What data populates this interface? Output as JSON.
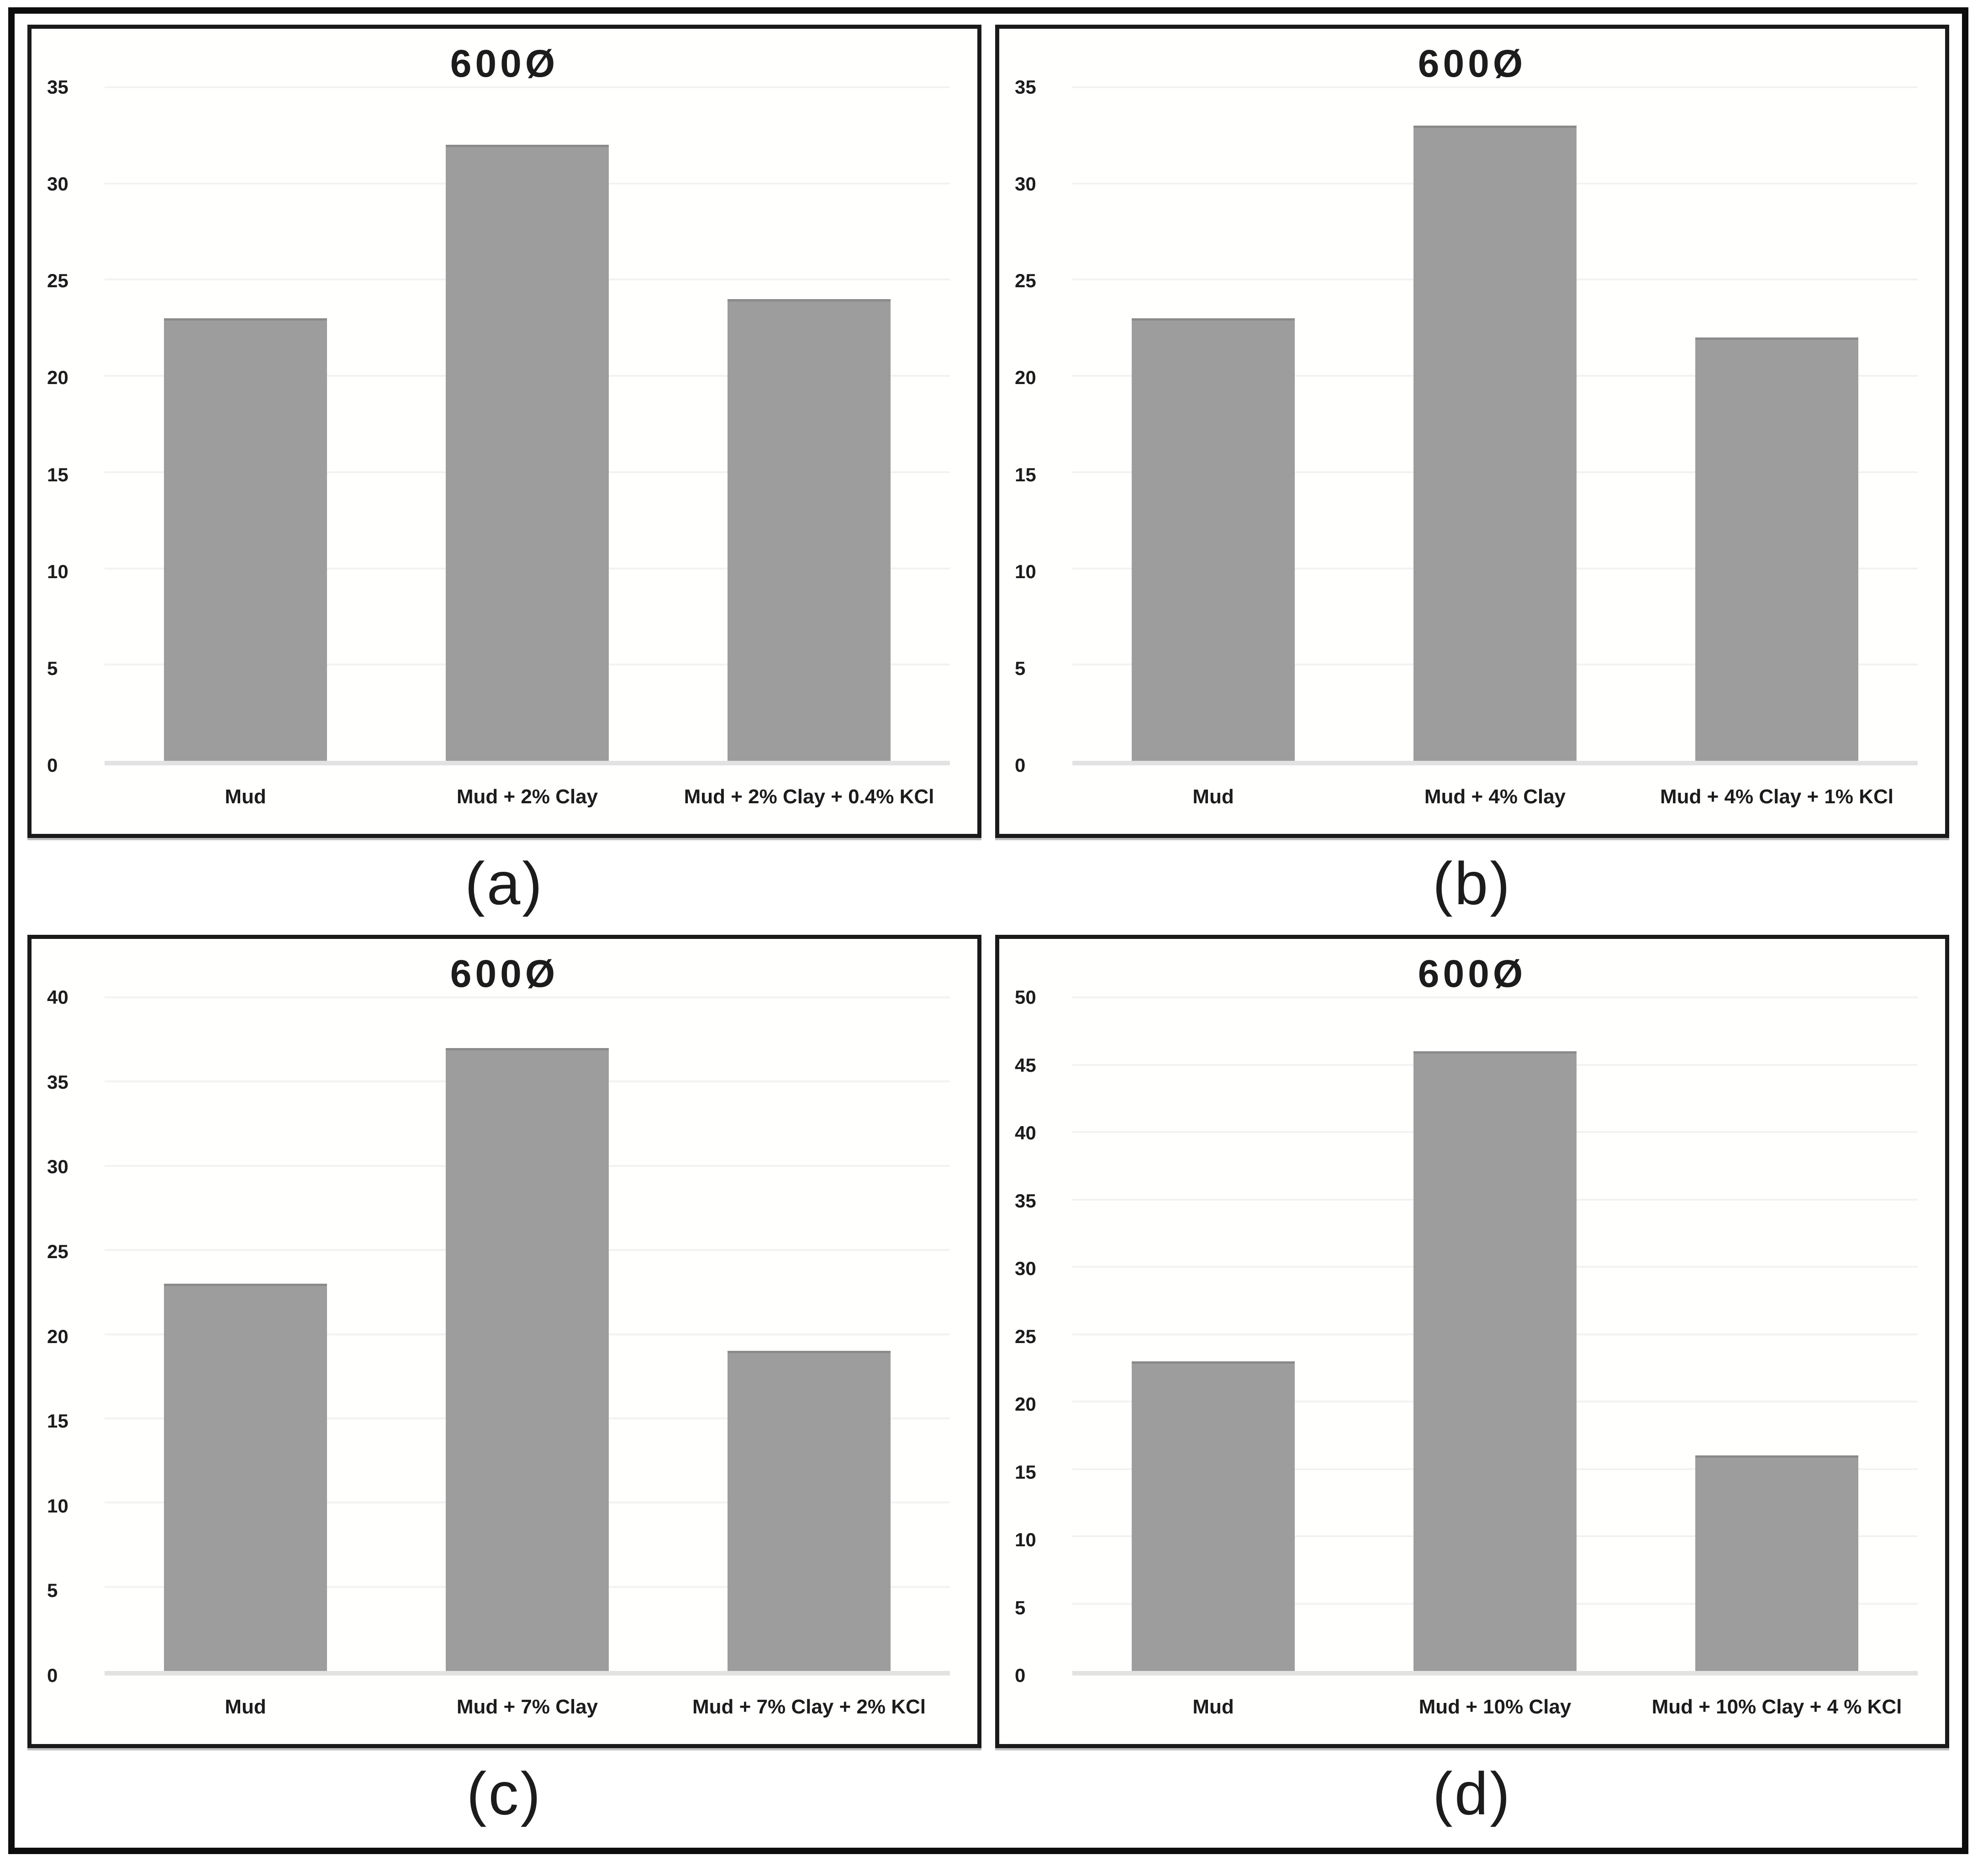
{
  "figure": {
    "captions": [
      "(a)",
      "(b)",
      "(c)",
      "(d)"
    ]
  },
  "colors": {
    "bar": "#9d9d9d",
    "bar_top_edge": "#8a8a8a",
    "gridline": "#f2f2f2",
    "baseline": "#e2e2e2",
    "panel_border": "#1a1a1a",
    "frame_border": "#0d0d0d",
    "text": "#1c1c1c"
  },
  "chart_data": [
    {
      "type": "bar",
      "title": "600Ø",
      "caption": "(a)",
      "categories": [
        "Mud",
        "Mud + 2% Clay",
        "Mud + 2% Clay + 0.4% KCl"
      ],
      "values": [
        23,
        32,
        24
      ],
      "xlabel": "",
      "ylabel": "",
      "ylim": [
        0,
        35
      ],
      "ytick_step": 5,
      "ytick_labels": [
        "0",
        "5",
        "10",
        "15",
        "20",
        "25",
        "30",
        "35"
      ],
      "grid": true,
      "legend": null
    },
    {
      "type": "bar",
      "title": "600Ø",
      "caption": "(b)",
      "categories": [
        "Mud",
        "Mud + 4% Clay",
        "Mud + 4% Clay + 1% KCl"
      ],
      "values": [
        23,
        33,
        22
      ],
      "xlabel": "",
      "ylabel": "",
      "ylim": [
        0,
        35
      ],
      "ytick_step": 5,
      "ytick_labels": [
        "0",
        "5",
        "10",
        "15",
        "20",
        "25",
        "30",
        "35"
      ],
      "grid": true,
      "legend": null
    },
    {
      "type": "bar",
      "title": "600Ø",
      "caption": "(c)",
      "categories": [
        "Mud",
        "Mud + 7% Clay",
        "Mud + 7% Clay + 2% KCl"
      ],
      "values": [
        23,
        37,
        19
      ],
      "xlabel": "",
      "ylabel": "",
      "ylim": [
        0,
        40
      ],
      "ytick_step": 5,
      "ytick_labels": [
        "0",
        "5",
        "10",
        "15",
        "20",
        "25",
        "30",
        "35",
        "40"
      ],
      "grid": true,
      "legend": null
    },
    {
      "type": "bar",
      "title": "600Ø",
      "caption": "(d)",
      "categories": [
        "Mud",
        "Mud + 10% Clay",
        "Mud + 10% Clay + 4 % KCl"
      ],
      "values": [
        23,
        46,
        16
      ],
      "xlabel": "",
      "ylabel": "",
      "ylim": [
        0,
        50
      ],
      "ytick_step": 5,
      "ytick_labels": [
        "0",
        "5",
        "10",
        "15",
        "20",
        "25",
        "30",
        "35",
        "40",
        "45",
        "50"
      ],
      "grid": true,
      "legend": null
    }
  ]
}
